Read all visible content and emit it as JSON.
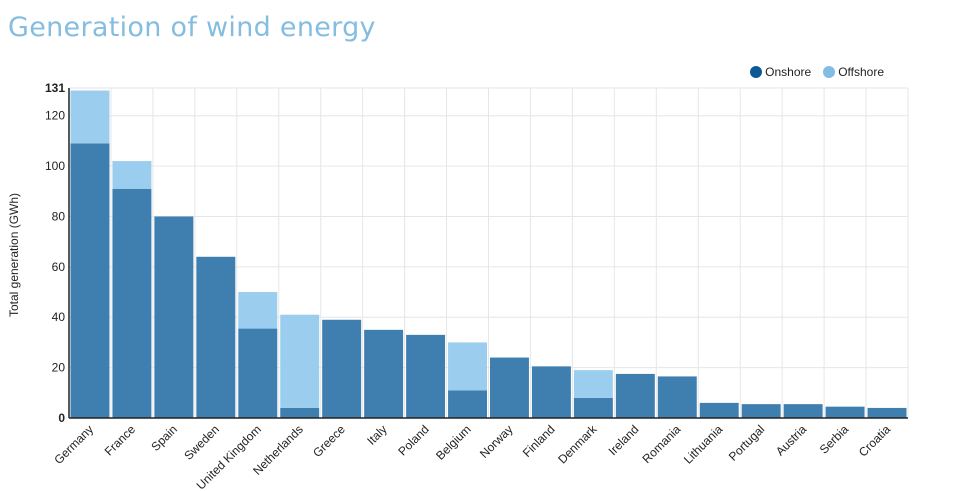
{
  "title": "Generation of wind energy",
  "colors": {
    "onshore": "#3f7fb0",
    "offshore": "#9bcdee",
    "legend_onshore": "#0f5a96",
    "legend_offshore": "#83bde6",
    "grid": "#e6e6e6"
  },
  "chart_data": {
    "type": "bar",
    "stacked": true,
    "ylabel": "Total generation (GWh)",
    "xlabel": "",
    "ylim": [
      0,
      131
    ],
    "yticks": [
      0,
      20,
      40,
      60,
      80,
      100,
      120,
      131
    ],
    "grid": true,
    "legend_position": "top-right",
    "categories": [
      "Germany",
      "France",
      "Spain",
      "Sweden",
      "United Kingdom",
      "Netherlands",
      "Greece",
      "Italy",
      "Poland",
      "Belgium",
      "Norway",
      "Finland",
      "Denmark",
      "Ireland",
      "Romania",
      "Lithuania",
      "Portugal",
      "Austria",
      "Serbia",
      "Croatia"
    ],
    "series": [
      {
        "name": "Onshore",
        "values": [
          109,
          91,
          80,
          64,
          35.5,
          4,
          39,
          35,
          33,
          11,
          24,
          20.5,
          8,
          17.5,
          16.5,
          6,
          5.5,
          5.5,
          4.5,
          4
        ]
      },
      {
        "name": "Offshore",
        "values": [
          21,
          11,
          0,
          0,
          14.5,
          37,
          0,
          0,
          0,
          19,
          0,
          0,
          11,
          0,
          0,
          0,
          0,
          0,
          0,
          0
        ]
      }
    ]
  }
}
